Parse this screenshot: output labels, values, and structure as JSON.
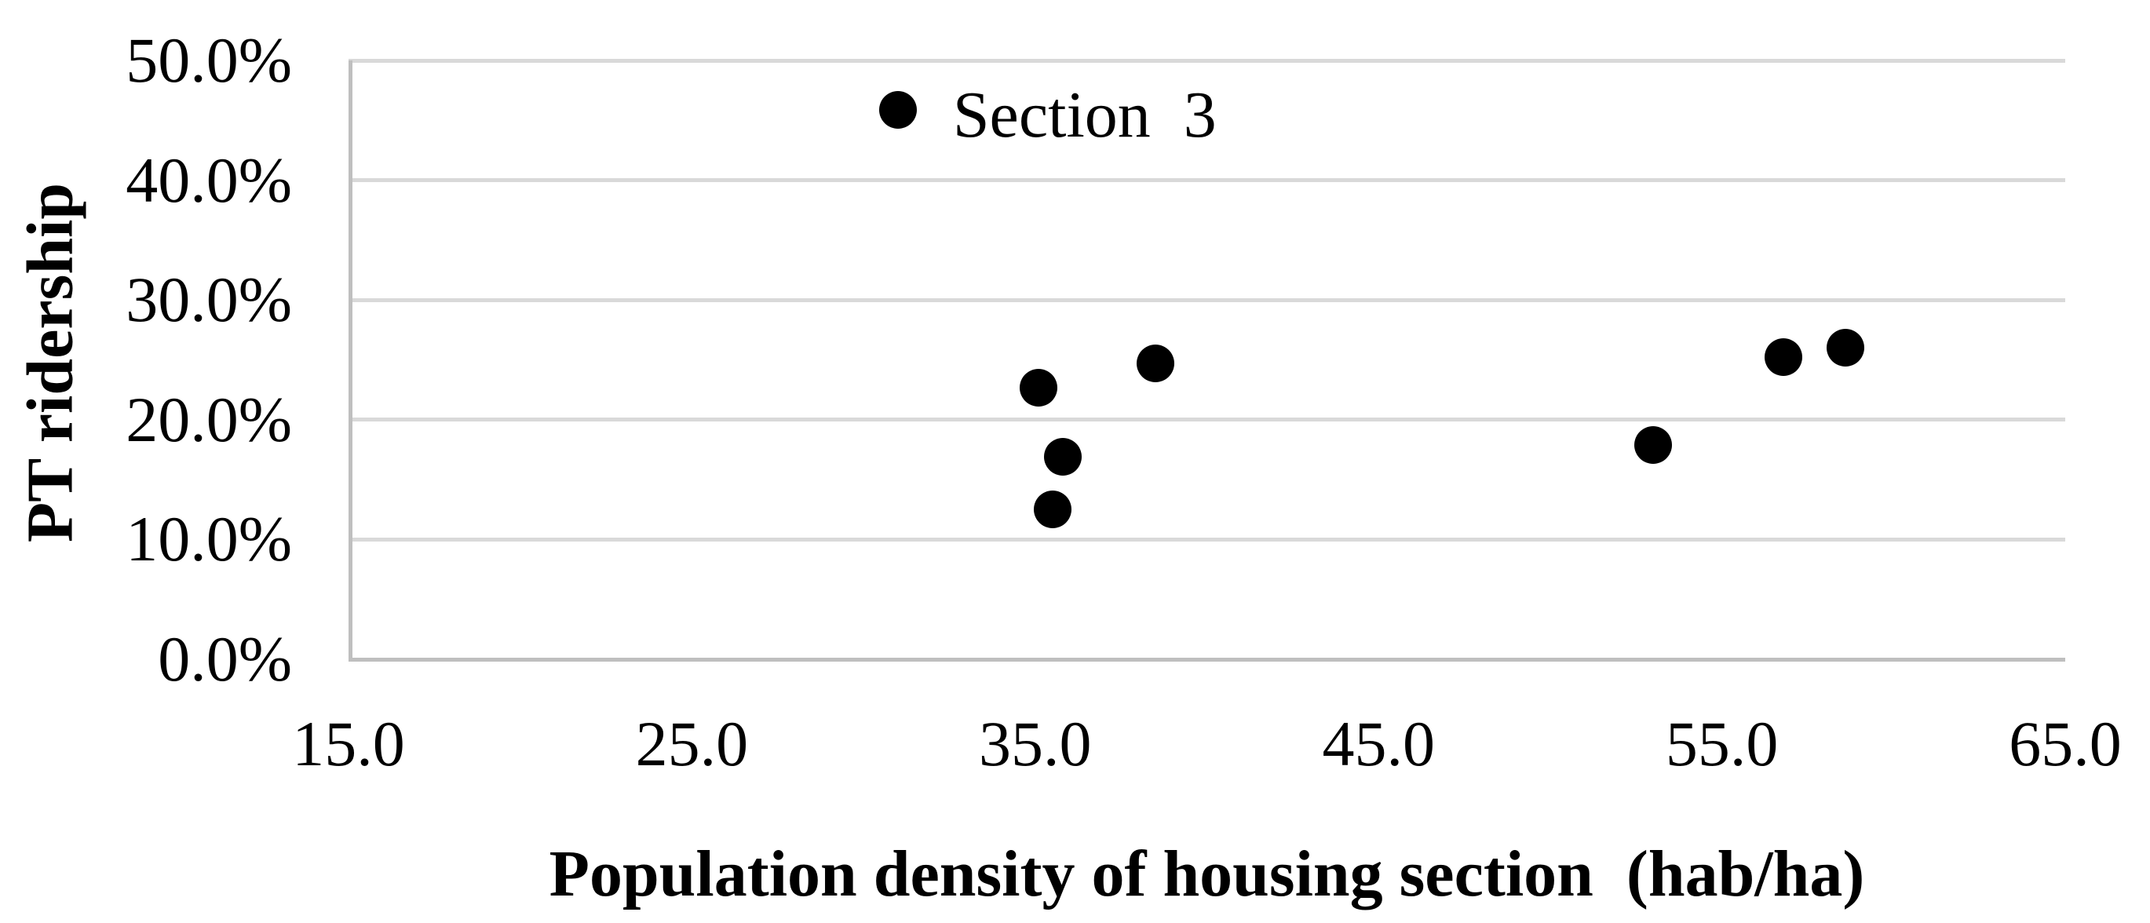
{
  "chart_data": {
    "type": "scatter",
    "title": "",
    "xlabel": "Population density of housing section  (hab/ha)",
    "ylabel": "PT ridership",
    "xlim": [
      15.0,
      65.0
    ],
    "ylim_pct": [
      0.0,
      50.0
    ],
    "x_tick_values": [
      15.0,
      25.0,
      35.0,
      45.0,
      55.0,
      65.0
    ],
    "x_tick_labels": [
      "15.0",
      "25.0",
      "35.0",
      "45.0",
      "55.0",
      "65.0"
    ],
    "y_tick_values": [
      0.0,
      10.0,
      20.0,
      30.0,
      40.0,
      50.0
    ],
    "y_tick_labels": [
      "0.0%",
      "10.0%",
      "20.0%",
      "30.0%",
      "40.0%",
      "50.0%"
    ],
    "grid": "horizontal-only",
    "legend": "none",
    "series_name": "Section 3",
    "points": [
      {
        "x": 31.0,
        "y_pct": 45.9,
        "label": "Section  3"
      },
      {
        "x": 35.1,
        "y_pct": 22.7
      },
      {
        "x": 38.5,
        "y_pct": 24.7
      },
      {
        "x": 35.8,
        "y_pct": 16.9
      },
      {
        "x": 35.5,
        "y_pct": 12.5
      },
      {
        "x": 53.0,
        "y_pct": 17.9
      },
      {
        "x": 56.8,
        "y_pct": 25.2
      },
      {
        "x": 58.6,
        "y_pct": 26.0
      }
    ]
  },
  "colors": {
    "marker": "#000000",
    "gridline": "#d9d9d9",
    "axis_line": "#bfbfbf",
    "text": "#000000",
    "background": "#ffffff"
  }
}
